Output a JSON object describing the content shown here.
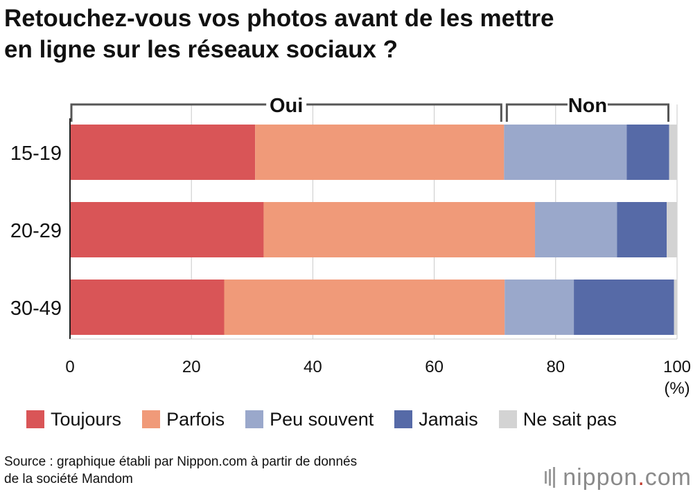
{
  "title": {
    "line1": "Retouchez-vous vos photos avant de les mettre",
    "line2": "en ligne sur les réseaux sociaux ?"
  },
  "chart_data": {
    "type": "bar",
    "orientation": "horizontal",
    "stacked": true,
    "title": "Retouchez-vous vos photos avant de les mettre en ligne sur les réseaux sociaux ?",
    "categories": [
      "15-19",
      "20-29",
      "30-49"
    ],
    "series": [
      {
        "name": "Toujours",
        "color": "#d95557",
        "values": [
          30.5,
          31.9,
          25.4
        ]
      },
      {
        "name": "Parfois",
        "color": "#f09a79",
        "values": [
          41.0,
          44.7,
          46.2
        ]
      },
      {
        "name": "Peu souvent",
        "color": "#9aa8cb",
        "values": [
          20.2,
          13.5,
          11.4
        ]
      },
      {
        "name": "Jamais",
        "color": "#566aa7",
        "values": [
          7.0,
          8.2,
          16.5
        ]
      },
      {
        "name": "Ne sait pas",
        "color": "#d3d3d3",
        "values": [
          1.3,
          1.7,
          0.5
        ]
      }
    ],
    "xlim": [
      0,
      100
    ],
    "xticks": [
      0,
      20,
      40,
      60,
      80,
      100
    ],
    "xunit": "(%)",
    "grid": true,
    "groups": [
      {
        "label": "Oui",
        "from": 0,
        "to": 71.5
      },
      {
        "label": "Non",
        "from": 71.5,
        "to": 98.8
      }
    ],
    "legend_position": "bottom"
  },
  "source": {
    "line1": "Source : graphique établi par Nippon.com à partir de donnés",
    "line2": "de la société Mandom"
  },
  "brand": {
    "name": "nippon",
    "dot": ".",
    "suffix": "com"
  }
}
